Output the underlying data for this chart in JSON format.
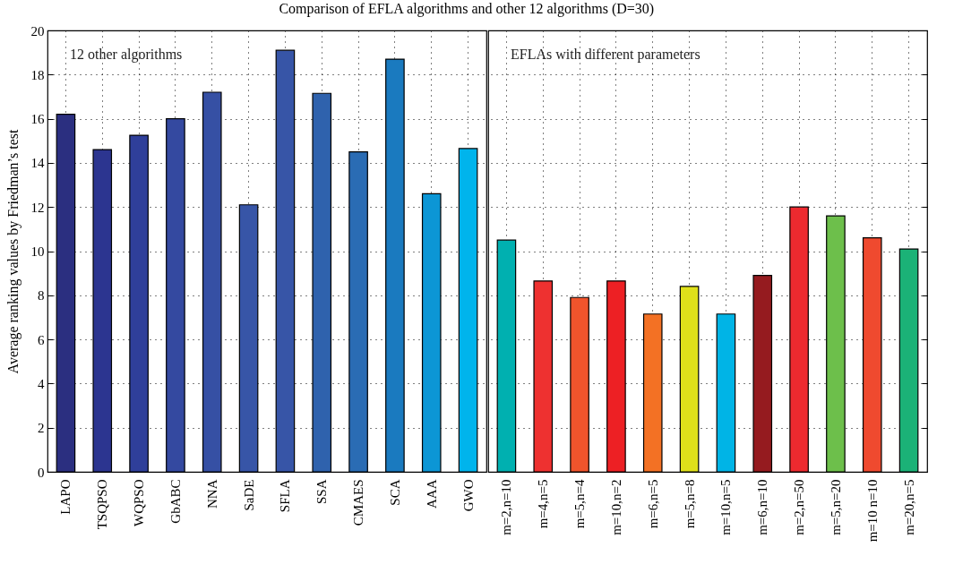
{
  "chart_data": [
    {
      "type": "bar",
      "title": "Comparison of EFLA algorithms and other 12 algorithms (D=30)",
      "ylabel": "Average ranking values by Friedman’s test",
      "categories": [
        "LAPO",
        "TSQPSO",
        "WQPSO",
        "GbABC",
        "NNA",
        "SaDE",
        "SFLA",
        "SSA",
        "CMAES",
        "SCA",
        "AAA",
        "GWO"
      ],
      "values": [
        16.2,
        14.6,
        15.25,
        16.0,
        17.2,
        12.1,
        19.1,
        17.15,
        14.5,
        18.7,
        12.6,
        14.65
      ],
      "colors": [
        "#2b2f80",
        "#2c3590",
        "#2f3f9a",
        "#3449a0",
        "#3650a4",
        "#3755a7",
        "#3755a7",
        "#2f62ad",
        "#2a6cb4",
        "#1a7abf",
        "#0c96d5",
        "#00b4ec"
      ],
      "ylim": [
        0,
        20
      ],
      "yticks": [
        0,
        2,
        4,
        6,
        8,
        10,
        12,
        14,
        16,
        18,
        20
      ],
      "grid": true,
      "annotations": [
        "12 other algorithms"
      ]
    },
    {
      "type": "bar",
      "categories": [
        "m=2,n=10",
        "m=4,n=5",
        "m=5,n=4",
        "m=10,n=2",
        "m=6,n=5",
        "m=5,n=8",
        "m=10,n=5",
        "m=6,n=10",
        "m=2,n=50",
        "m=5,n=20",
        "m=10 n=10",
        "m=20,n=5"
      ],
      "values": [
        10.5,
        8.65,
        7.9,
        8.65,
        7.15,
        8.4,
        7.15,
        8.9,
        12.0,
        11.6,
        10.6,
        10.1
      ],
      "colors": [
        "#00b0b0",
        "#ee3130",
        "#f0542c",
        "#ed2024",
        "#f37124",
        "#dfe01a",
        "#00b4e6",
        "#951b1f",
        "#ed2a2f",
        "#6dbf4b",
        "#ef4a2f",
        "#1bb277"
      ],
      "ylim": [
        0,
        20
      ],
      "yticks": [
        0,
        2,
        4,
        6,
        8,
        10,
        12,
        14,
        16,
        18,
        20
      ],
      "grid": true,
      "tick_labels": "x",
      "annotations": [
        "EFLAs with different parameters"
      ]
    }
  ]
}
